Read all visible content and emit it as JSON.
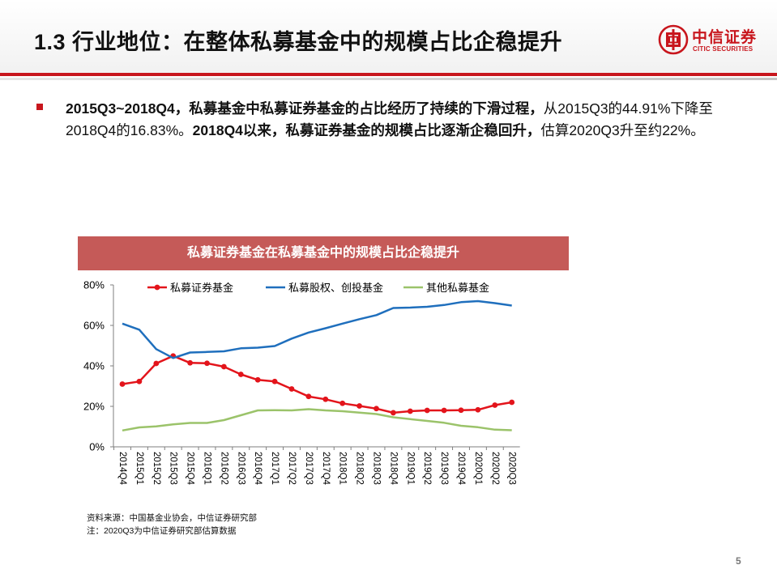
{
  "header": {
    "title": "1.3 行业地位：在整体私募基金中的规模占比企稳提升",
    "logo_cn": "中信证券",
    "logo_en": "CITIC SECURITIES"
  },
  "bullet": {
    "p1": "2015Q3~2018Q4，私募基金中私募证券基金的占比经历了持续的下滑过程，",
    "p2": "从2015Q3的44.91%下降至2018Q4的16.83%。",
    "p3": "2018Q4以来，私募证券基金的规模占比逐渐企稳回升，",
    "p4": "估算2020Q3升至约22%。"
  },
  "chart_banner": "私募证券基金在私募基金中的规模占比企稳提升",
  "chart_data": {
    "type": "line",
    "title": "私募证券基金在私募基金中的规模占比企稳提升",
    "xlabel": "",
    "ylabel": "",
    "categories": [
      "2014Q4",
      "2015Q1",
      "2015Q2",
      "2015Q3",
      "2015Q4",
      "2016Q1",
      "2016Q2",
      "2016Q3",
      "2016Q4",
      "2017Q1",
      "2017Q2",
      "2017Q3",
      "2017Q4",
      "2018Q1",
      "2018Q2",
      "2018Q3",
      "2018Q4",
      "2019Q1",
      "2019Q2",
      "2019Q3",
      "2019Q4",
      "2020Q1",
      "2020Q2",
      "2020Q3"
    ],
    "y_ticks": [
      "0%",
      "20%",
      "40%",
      "60%",
      "80%"
    ],
    "ylim": [
      0,
      80
    ],
    "grid": false,
    "legend_position": "top",
    "series": [
      {
        "name": "私募证券基金",
        "color": "#e3141b",
        "marker": "circle",
        "values": [
          31,
          32.3,
          41.2,
          44.91,
          41.5,
          41.3,
          39.6,
          35.8,
          33.1,
          32.3,
          28.6,
          24.9,
          23.5,
          21.5,
          20.2,
          18.9,
          16.83,
          17.6,
          18.0,
          18.0,
          18.1,
          18.3,
          20.6,
          22.0
        ]
      },
      {
        "name": "私募股权、创投基金",
        "color": "#1f6fbd",
        "marker": "none",
        "values": [
          60.9,
          57.9,
          48.3,
          43.9,
          46.6,
          46.9,
          47.2,
          48.7,
          49.0,
          49.8,
          53.5,
          56.5,
          58.6,
          60.9,
          63.1,
          65.1,
          68.6,
          68.8,
          69.2,
          70.1,
          71.5,
          72.0,
          71.0,
          69.8
        ]
      },
      {
        "name": "其他私募基金",
        "color": "#9bc36a",
        "marker": "none",
        "values": [
          8.1,
          9.6,
          10.1,
          11.1,
          11.8,
          11.8,
          13.2,
          15.6,
          18.0,
          18.1,
          18.0,
          18.6,
          18.0,
          17.6,
          16.9,
          16.2,
          14.6,
          13.7,
          12.8,
          11.9,
          10.4,
          9.7,
          8.5,
          8.2
        ]
      }
    ]
  },
  "source": {
    "line1": "资料来源：中国基金业协会，中信证券研究部",
    "line2": "注：2020Q3为中信证券研究部估算数据"
  },
  "page_number": "5"
}
